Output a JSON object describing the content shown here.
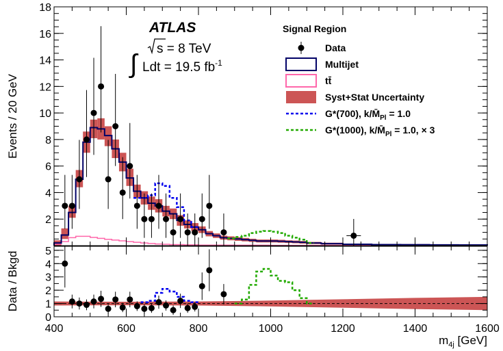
{
  "chart_data": {
    "type": "histogram",
    "bin_width": 20,
    "x_range": [
      400,
      1600
    ],
    "xlabel_main": "m",
    "xlabel_sub": "4j",
    "xlabel_unit": " [GeV]",
    "x_ticks": [
      "400",
      "600",
      "800",
      "1000",
      "1200",
      "1400",
      "1600"
    ],
    "top_panel": {
      "ylabel": "Events / 20 GeV",
      "ylim": [
        0,
        18
      ],
      "y_ticks": [
        "2",
        "4",
        "6",
        "8",
        "10",
        "12",
        "14",
        "16",
        "18"
      ],
      "multijet": [
        [
          400,
          0.2
        ],
        [
          420,
          0.8
        ],
        [
          440,
          2.5
        ],
        [
          460,
          5.0
        ],
        [
          480,
          7.8
        ],
        [
          500,
          8.9
        ],
        [
          520,
          8.8
        ],
        [
          540,
          8.3
        ],
        [
          560,
          7.3
        ],
        [
          580,
          6.3
        ],
        [
          600,
          5.1
        ],
        [
          620,
          4.1
        ],
        [
          640,
          3.6
        ],
        [
          660,
          3.2
        ],
        [
          680,
          3.0
        ],
        [
          700,
          2.6
        ],
        [
          720,
          2.4
        ],
        [
          740,
          1.9
        ],
        [
          760,
          1.6
        ],
        [
          780,
          1.4
        ],
        [
          800,
          1.2
        ],
        [
          820,
          0.9
        ],
        [
          840,
          0.75
        ],
        [
          860,
          0.6
        ],
        [
          880,
          0.55
        ],
        [
          900,
          0.5
        ],
        [
          920,
          0.45
        ],
        [
          940,
          0.4
        ],
        [
          960,
          0.35
        ],
        [
          980,
          0.35
        ],
        [
          1000,
          0.35
        ],
        [
          1020,
          0.33
        ],
        [
          1040,
          0.3
        ],
        [
          1060,
          0.28
        ],
        [
          1080,
          0.25
        ],
        [
          1100,
          0.2
        ],
        [
          1140,
          0.15
        ],
        [
          1200,
          0.1
        ],
        [
          1280,
          0.08
        ],
        [
          1360,
          0.07
        ],
        [
          1440,
          0.06
        ],
        [
          1520,
          0.05
        ],
        [
          1580,
          0.05
        ]
      ],
      "uncertainty": [
        [
          400,
          0.0,
          0.4
        ],
        [
          420,
          0.5,
          1.3
        ],
        [
          440,
          2.1,
          3.0
        ],
        [
          460,
          4.4,
          5.7
        ],
        [
          480,
          7.0,
          8.6
        ],
        [
          500,
          8.1,
          9.5
        ],
        [
          520,
          8.0,
          9.6
        ],
        [
          540,
          7.5,
          9.0
        ],
        [
          560,
          6.6,
          8.0
        ],
        [
          580,
          5.6,
          7.0
        ],
        [
          600,
          4.5,
          5.8
        ],
        [
          620,
          3.6,
          4.6
        ],
        [
          640,
          3.1,
          4.1
        ],
        [
          660,
          2.7,
          3.7
        ],
        [
          680,
          2.5,
          3.5
        ],
        [
          700,
          2.2,
          3.0
        ],
        [
          720,
          2.0,
          2.8
        ],
        [
          740,
          1.5,
          2.3
        ],
        [
          760,
          1.3,
          1.9
        ],
        [
          780,
          1.1,
          1.7
        ],
        [
          800,
          0.95,
          1.45
        ],
        [
          820,
          0.7,
          1.1
        ],
        [
          840,
          0.58,
          0.92
        ],
        [
          860,
          0.45,
          0.75
        ],
        [
          880,
          0.4,
          0.7
        ],
        [
          900,
          0.36,
          0.64
        ],
        [
          920,
          0.32,
          0.58
        ],
        [
          940,
          0.28,
          0.52
        ],
        [
          960,
          0.24,
          0.46
        ],
        [
          980,
          0.24,
          0.46
        ],
        [
          1000,
          0.24,
          0.46
        ],
        [
          1020,
          0.22,
          0.44
        ],
        [
          1040,
          0.2,
          0.4
        ],
        [
          1060,
          0.18,
          0.38
        ],
        [
          1080,
          0.15,
          0.35
        ],
        [
          1100,
          0.12,
          0.28
        ],
        [
          1140,
          0.08,
          0.22
        ],
        [
          1200,
          0.05,
          0.15
        ],
        [
          1280,
          0.04,
          0.12
        ],
        [
          1360,
          0.03,
          0.11
        ],
        [
          1440,
          0.02,
          0.1
        ],
        [
          1520,
          0.02,
          0.08
        ],
        [
          1580,
          0.02,
          0.08
        ]
      ],
      "ttbar": [
        [
          400,
          0.1
        ],
        [
          420,
          0.3
        ],
        [
          440,
          0.6
        ],
        [
          460,
          0.7
        ],
        [
          480,
          0.7
        ],
        [
          500,
          0.62
        ],
        [
          520,
          0.55
        ],
        [
          540,
          0.48
        ],
        [
          560,
          0.42
        ],
        [
          580,
          0.36
        ],
        [
          600,
          0.3
        ],
        [
          620,
          0.25
        ],
        [
          640,
          0.2
        ],
        [
          660,
          0.16
        ],
        [
          680,
          0.12
        ],
        [
          700,
          0.1
        ],
        [
          720,
          0.08
        ],
        [
          760,
          0.06
        ],
        [
          800,
          0.04
        ],
        [
          900,
          0.03
        ],
        [
          1000,
          0.02
        ],
        [
          1200,
          0.02
        ],
        [
          1580,
          0.01
        ]
      ],
      "g700": [
        [
          620,
          3.6
        ],
        [
          640,
          3.6
        ],
        [
          660,
          3.8
        ],
        [
          680,
          4.7
        ],
        [
          700,
          4.5
        ],
        [
          720,
          3.6
        ],
        [
          740,
          2.9
        ],
        [
          760,
          1.9
        ],
        [
          780,
          1.4
        ]
      ],
      "g1000": [
        [
          880,
          0.55
        ],
        [
          900,
          0.65
        ],
        [
          920,
          0.75
        ],
        [
          940,
          0.95
        ],
        [
          960,
          1.05
        ],
        [
          980,
          1.1
        ],
        [
          1000,
          1.05
        ],
        [
          1020,
          0.95
        ],
        [
          1040,
          0.75
        ],
        [
          1060,
          0.6
        ],
        [
          1080,
          0.45
        ],
        [
          1100,
          0.2
        ]
      ],
      "data": [
        {
          "x": 430,
          "y": 3
        },
        {
          "x": 450,
          "y": 3
        },
        {
          "x": 470,
          "y": 5
        },
        {
          "x": 490,
          "y": 8
        },
        {
          "x": 510,
          "y": 10
        },
        {
          "x": 530,
          "y": 12
        },
        {
          "x": 550,
          "y": 5
        },
        {
          "x": 570,
          "y": 9
        },
        {
          "x": 590,
          "y": 4
        },
        {
          "x": 610,
          "y": 6
        },
        {
          "x": 630,
          "y": 3
        },
        {
          "x": 650,
          "y": 2
        },
        {
          "x": 670,
          "y": 2
        },
        {
          "x": 690,
          "y": 3
        },
        {
          "x": 710,
          "y": 2
        },
        {
          "x": 730,
          "y": 1
        },
        {
          "x": 750,
          "y": 2
        },
        {
          "x": 770,
          "y": 1
        },
        {
          "x": 790,
          "y": 1
        },
        {
          "x": 810,
          "y": 2
        },
        {
          "x": 830,
          "y": 3
        },
        {
          "x": 870,
          "y": 1
        },
        {
          "x": 1230,
          "y": 0.75,
          "xerr": 20
        }
      ]
    },
    "ratio_panel": {
      "ylabel": "Data / Bkgd",
      "ylim": [
        0,
        5.3
      ],
      "y_ticks": [
        "0",
        "1",
        "2",
        "3",
        "4",
        "5"
      ],
      "reference_line": 1,
      "data": [
        {
          "x": 430,
          "y": 4.0
        },
        {
          "x": 450,
          "y": 1.15
        },
        {
          "x": 470,
          "y": 1.0
        },
        {
          "x": 490,
          "y": 0.9
        },
        {
          "x": 510,
          "y": 1.15
        },
        {
          "x": 530,
          "y": 1.35
        },
        {
          "x": 550,
          "y": 0.6
        },
        {
          "x": 570,
          "y": 1.3
        },
        {
          "x": 590,
          "y": 0.7
        },
        {
          "x": 610,
          "y": 1.3
        },
        {
          "x": 630,
          "y": 0.8
        },
        {
          "x": 650,
          "y": 0.6
        },
        {
          "x": 670,
          "y": 0.65
        },
        {
          "x": 690,
          "y": 1.1
        },
        {
          "x": 710,
          "y": 0.85
        },
        {
          "x": 730,
          "y": 0.5
        },
        {
          "x": 750,
          "y": 1.2
        },
        {
          "x": 770,
          "y": 0.65
        },
        {
          "x": 790,
          "y": 0.75
        },
        {
          "x": 810,
          "y": 2.3
        },
        {
          "x": 830,
          "y": 3.5
        },
        {
          "x": 870,
          "y": 1.7
        }
      ],
      "uncertainty": [
        [
          400,
          0.85,
          1.15
        ],
        [
          600,
          0.87,
          1.13
        ],
        [
          800,
          0.85,
          1.15
        ],
        [
          1000,
          0.78,
          1.22
        ],
        [
          1200,
          0.68,
          1.32
        ],
        [
          1400,
          0.58,
          1.42
        ],
        [
          1600,
          0.5,
          1.5
        ]
      ],
      "g700": [
        [
          640,
          1.1
        ],
        [
          660,
          1.2
        ],
        [
          680,
          1.8
        ],
        [
          700,
          2.1
        ],
        [
          720,
          1.9
        ],
        [
          740,
          1.5
        ],
        [
          760,
          1.2
        ],
        [
          780,
          1.1
        ]
      ],
      "g1000": [
        [
          900,
          1.0
        ],
        [
          920,
          1.3
        ],
        [
          940,
          2.4
        ],
        [
          960,
          3.4
        ],
        [
          980,
          3.6
        ],
        [
          1000,
          3.1
        ],
        [
          1020,
          2.7
        ],
        [
          1040,
          2.6
        ],
        [
          1060,
          2.0
        ],
        [
          1080,
          1.4
        ],
        [
          1100,
          1.0
        ]
      ]
    },
    "annotations": {
      "experiment": "ATLAS",
      "sqrt_s": "s",
      "energy": " = 8 TeV",
      "lumi_prefix": "Ldt = 19.5 fb",
      "lumi_exp": "-1"
    },
    "legend": {
      "title": "Signal Region",
      "placement": "top-right",
      "entries": [
        {
          "label": "Data",
          "style": "marker"
        },
        {
          "label": "Multijet",
          "style": "box",
          "color": "#000066"
        },
        {
          "label": "tt̄",
          "style": "box",
          "color": "#ff66aa"
        },
        {
          "label": "Syst+Stat Uncertainty",
          "style": "fill",
          "color": "#cc5555"
        },
        {
          "label": "G*(700), k/M̄",
          "sub": "Pl",
          "suffix": " = 1.0",
          "style": "dash",
          "color": "#0000ee"
        },
        {
          "label": "G*(1000), k/M̄",
          "sub": "Pl",
          "suffix": " = 1.0, × 3",
          "style": "dash",
          "color": "#22aa00"
        }
      ]
    },
    "colors": {
      "multijet": "#000066",
      "ttbar": "#ff66aa",
      "uncertainty": "#cc5555",
      "g700": "#0000ee",
      "g1000": "#22aa00",
      "data": "#000000"
    }
  }
}
